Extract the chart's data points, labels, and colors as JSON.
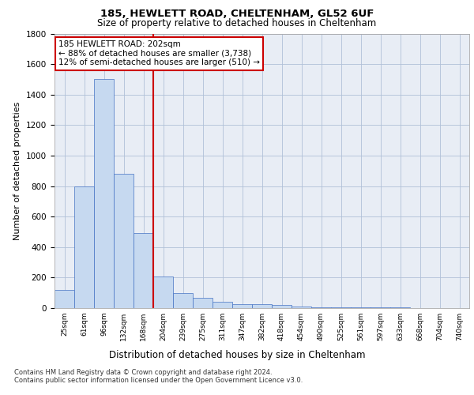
{
  "title1": "185, HEWLETT ROAD, CHELTENHAM, GL52 6UF",
  "title2": "Size of property relative to detached houses in Cheltenham",
  "xlabel": "Distribution of detached houses by size in Cheltenham",
  "ylabel": "Number of detached properties",
  "bar_labels": [
    "25sqm",
    "61sqm",
    "96sqm",
    "132sqm",
    "168sqm",
    "204sqm",
    "239sqm",
    "275sqm",
    "311sqm",
    "347sqm",
    "382sqm",
    "418sqm",
    "454sqm",
    "490sqm",
    "525sqm",
    "561sqm",
    "597sqm",
    "633sqm",
    "668sqm",
    "704sqm",
    "740sqm"
  ],
  "bar_values": [
    120,
    800,
    1500,
    880,
    490,
    205,
    100,
    65,
    40,
    28,
    25,
    22,
    10,
    5,
    5,
    5,
    5,
    3,
    2,
    1,
    1
  ],
  "bar_color": "#c6d9f0",
  "bar_edgecolor": "#4472c4",
  "vline_color": "#cc0000",
  "vline_pos": 4.5,
  "annotation_box_text": "185 HEWLETT ROAD: 202sqm\n← 88% of detached houses are smaller (3,738)\n12% of semi-detached houses are larger (510) →",
  "annotation_box_color": "#cc0000",
  "ylim": [
    0,
    1800
  ],
  "yticks": [
    0,
    200,
    400,
    600,
    800,
    1000,
    1200,
    1400,
    1600,
    1800
  ],
  "grid_color": "#b0c0d8",
  "bg_color": "#e8edf5",
  "footer1": "Contains HM Land Registry data © Crown copyright and database right 2024.",
  "footer2": "Contains public sector information licensed under the Open Government Licence v3.0."
}
